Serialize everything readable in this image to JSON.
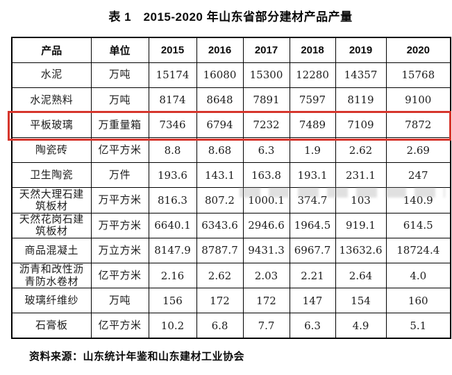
{
  "page": {
    "title": "表 1　2015-2020 年山东省部分建材产品产量",
    "source_note": "资料来源：山东统计年鉴和山东建材工业协会"
  },
  "table": {
    "columns": [
      "产品",
      "单位",
      "2015",
      "2016",
      "2017",
      "2018",
      "2019",
      "2020"
    ],
    "rows": [
      {
        "product": "水泥",
        "unit": "万吨",
        "values": [
          "15174",
          "16080",
          "15300",
          "12280",
          "14357",
          "15768"
        ]
      },
      {
        "product": "水泥熟料",
        "unit": "万吨",
        "values": [
          "8174",
          "8648",
          "7891",
          "7597",
          "8119",
          "9100"
        ]
      },
      {
        "product": "平板玻璃",
        "unit": "万重量箱",
        "values": [
          "7346",
          "6794",
          "7232",
          "7489",
          "7109",
          "7872"
        ],
        "highlighted": true
      },
      {
        "product": "陶瓷砖",
        "unit": "亿平方米",
        "values": [
          "8.8",
          "8.68",
          "6.3",
          "1.9",
          "2.62",
          "2.69"
        ]
      },
      {
        "product": "卫生陶瓷",
        "unit": "万件",
        "values": [
          "193.6",
          "143.1",
          "163.8",
          "193.1",
          "231.1",
          "247"
        ],
        "muted_value_indexes": [
          2,
          3,
          4
        ]
      },
      {
        "product": "天然大理石建\n筑板材",
        "unit": "万平方米",
        "values": [
          "816.3",
          "807.2",
          "1000.1",
          "374.7",
          "103",
          "140.9"
        ]
      },
      {
        "product": "天然花岗石建\n筑板材",
        "unit": "万平方米",
        "values": [
          "6640.1",
          "6343.6",
          "2946.6",
          "1964.5",
          "919.1",
          "614.5"
        ]
      },
      {
        "product": "商品混凝土",
        "unit": "万立方米",
        "values": [
          "8147.9",
          "8787.7",
          "9431.3",
          "6967.7",
          "13632.6",
          "18724.4"
        ]
      },
      {
        "product": "沥青和改性沥\n青防水卷材",
        "unit": "亿平方米",
        "values": [
          "2.16",
          "2.62",
          "2.03",
          "2.21",
          "2.64",
          "4.0"
        ]
      },
      {
        "product": "玻璃纤维纱",
        "unit": "万吨",
        "values": [
          "156",
          "172",
          "172",
          "147",
          "154",
          "160"
        ]
      },
      {
        "product": "石膏板",
        "unit": "亿平方米",
        "values": [
          "10.2",
          "6.8",
          "7.7",
          "6.3",
          "4.9",
          "5.1"
        ]
      }
    ],
    "highlight_color": "#d6352c",
    "highlighted_row_product": "平板玻璃"
  },
  "chart_data": {
    "type": "table",
    "title": "表 1　2015-2020 年山东省部分建材产品产量",
    "columns": [
      "产品",
      "单位",
      "2015",
      "2016",
      "2017",
      "2018",
      "2019",
      "2020"
    ],
    "rows": [
      [
        "水泥",
        "万吨",
        15174,
        16080,
        15300,
        12280,
        14357,
        15768
      ],
      [
        "水泥熟料",
        "万吨",
        8174,
        8648,
        7891,
        7597,
        8119,
        9100
      ],
      [
        "平板玻璃",
        "万重量箱",
        7346,
        6794,
        7232,
        7489,
        7109,
        7872
      ],
      [
        "陶瓷砖",
        "亿平方米",
        8.8,
        8.68,
        6.3,
        1.9,
        2.62,
        2.69
      ],
      [
        "卫生陶瓷",
        "万件",
        193.6,
        143.1,
        163.8,
        193.1,
        231.1,
        247
      ],
      [
        "天然大理石建筑板材",
        "万平方米",
        816.3,
        807.2,
        1000.1,
        374.7,
        103,
        140.9
      ],
      [
        "天然花岗石建筑板材",
        "万平方米",
        6640.1,
        6343.6,
        2946.6,
        1964.5,
        919.1,
        614.5
      ],
      [
        "商品混凝土",
        "万立方米",
        8147.9,
        8787.7,
        9431.3,
        6967.7,
        13632.6,
        18724.4
      ],
      [
        "沥青和改性沥青防水卷材",
        "亿平方米",
        2.16,
        2.62,
        2.03,
        2.21,
        2.64,
        4.0
      ],
      [
        "玻璃纤维纱",
        "万吨",
        156,
        172,
        172,
        147,
        154,
        160
      ],
      [
        "石膏板",
        "亿平方米",
        10.2,
        6.8,
        7.7,
        6.3,
        4.9,
        5.1
      ]
    ],
    "annotation": "red box highlighting 平板玻璃 row",
    "source": "资料来源：山东统计年鉴和山东建材工业协会"
  }
}
